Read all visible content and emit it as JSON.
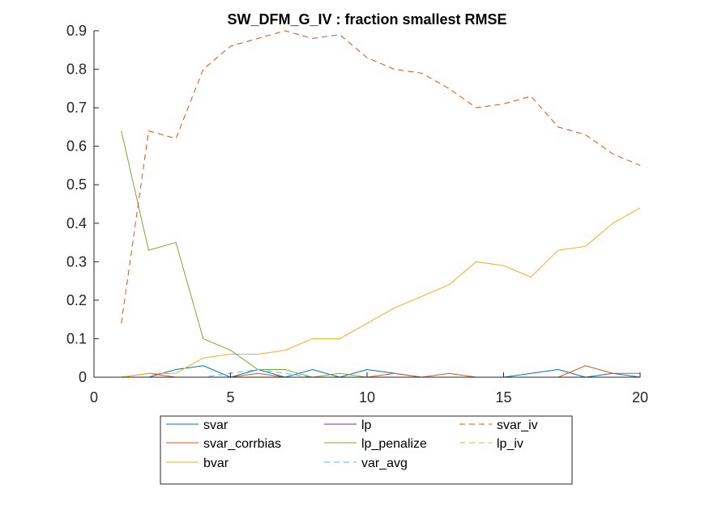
{
  "chart_data": {
    "type": "line",
    "title": "SW_DFM_G_IV : fraction smallest RMSE",
    "xlabel": "",
    "ylabel": "",
    "xlim": [
      0,
      20
    ],
    "ylim": [
      0,
      0.9
    ],
    "xticks": [
      0,
      5,
      10,
      15,
      20
    ],
    "yticks": [
      0,
      0.1,
      0.2,
      0.3,
      0.4,
      0.5,
      0.6,
      0.7,
      0.8,
      0.9
    ],
    "grid": false,
    "legend": "bottom-outside",
    "x": [
      1,
      2,
      3,
      4,
      5,
      6,
      7,
      8,
      9,
      10,
      11,
      12,
      13,
      14,
      15,
      16,
      17,
      18,
      19,
      20
    ],
    "series": [
      {
        "name": "svar",
        "color": "#0072BD",
        "dash": "solid",
        "values": [
          0,
          0,
          0.02,
          0.03,
          0,
          0.02,
          0,
          0.02,
          0,
          0.02,
          0.01,
          0,
          0,
          0,
          0,
          0.01,
          0.02,
          0,
          0.01,
          0
        ]
      },
      {
        "name": "svar_corrbias",
        "color": "#D95319",
        "dash": "solid",
        "values": [
          0,
          0.01,
          0,
          0,
          0,
          0.01,
          0,
          0,
          0,
          0,
          0.01,
          0,
          0.01,
          0,
          0,
          0,
          0,
          0.03,
          0.01,
          0.01
        ]
      },
      {
        "name": "bvar",
        "color": "#EDB120",
        "dash": "solid",
        "values": [
          0,
          0.01,
          0.01,
          0.05,
          0.06,
          0.06,
          0.07,
          0.1,
          0.1,
          0.14,
          0.18,
          0.21,
          0.24,
          0.3,
          0.29,
          0.26,
          0.33,
          0.34,
          0.4,
          0.44
        ]
      },
      {
        "name": "lp",
        "color": "#7E2F8E",
        "dash": "solid",
        "values": [
          0,
          0,
          0,
          0,
          0,
          0,
          0,
          0,
          0,
          0,
          0,
          0,
          0,
          0,
          0,
          0,
          0,
          0,
          0,
          0
        ]
      },
      {
        "name": "lp_penalize",
        "color": "#77AC30",
        "dash": "solid",
        "values": [
          0.64,
          0.33,
          0.35,
          0.1,
          0.07,
          0.02,
          0.02,
          0,
          0.01,
          0,
          0,
          0,
          0,
          0,
          0,
          0,
          0,
          0,
          0,
          0
        ]
      },
      {
        "name": "var_avg",
        "color": "#4DBEEE",
        "dash": "dashed",
        "values": [
          0,
          0,
          0,
          0,
          0.01,
          0.02,
          0.01,
          0,
          0,
          0,
          0,
          0,
          0,
          0,
          0,
          0,
          0,
          0,
          0,
          0
        ]
      },
      {
        "name": "svar_iv",
        "color": "#D95319",
        "dash": "dashed",
        "values": [
          0.14,
          0.64,
          0.62,
          0.8,
          0.86,
          0.88,
          0.9,
          0.88,
          0.89,
          0.83,
          0.8,
          0.79,
          0.75,
          0.7,
          0.71,
          0.73,
          0.65,
          0.63,
          0.58,
          0.55
        ]
      },
      {
        "name": "lp_iv",
        "color": "#EDB120",
        "dash": "dashed",
        "values": [
          0,
          0,
          0,
          0,
          0,
          0,
          0,
          0,
          0,
          0,
          0,
          0,
          0,
          0,
          0,
          0,
          0,
          0,
          0,
          0
        ]
      }
    ]
  }
}
